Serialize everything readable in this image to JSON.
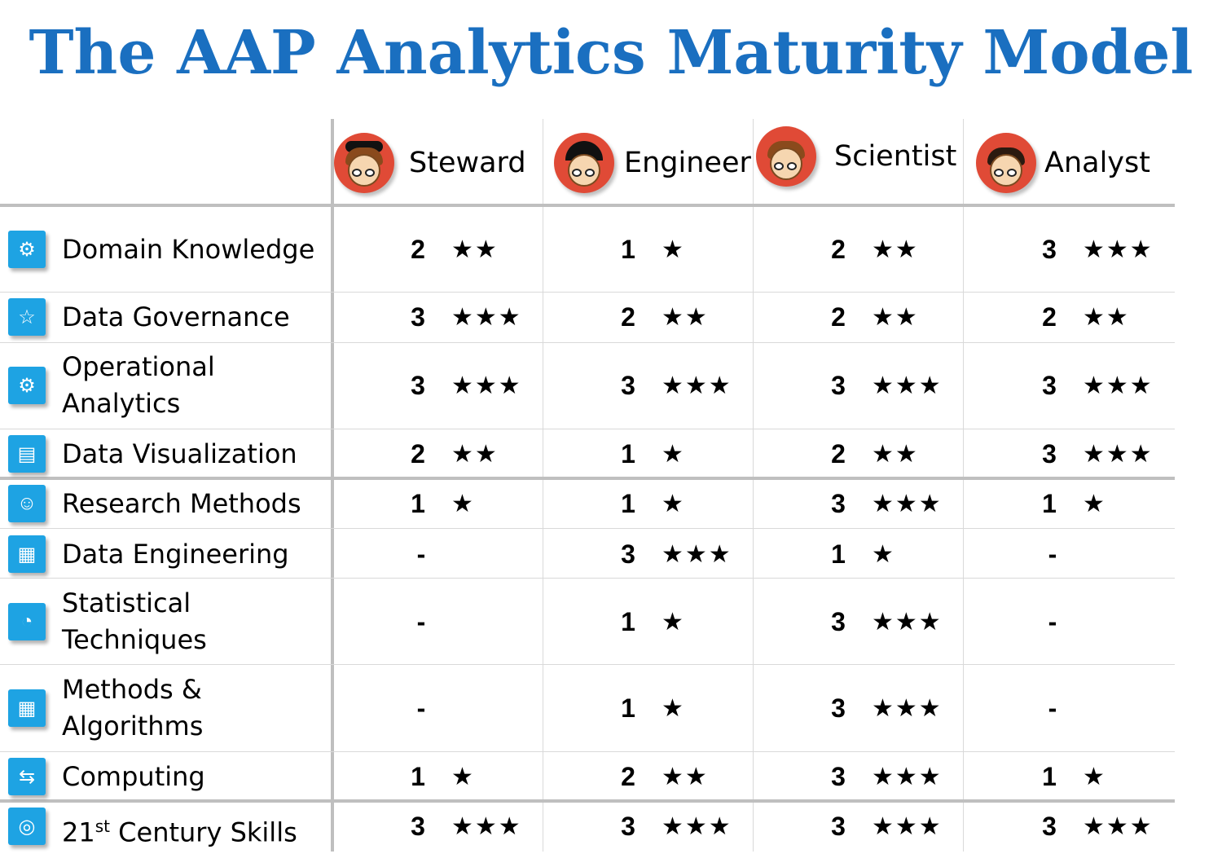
{
  "title": "The AAP Analytics Maturity Model",
  "colors": {
    "title": "#1a6fc0",
    "avatar_bg": "#e04a36",
    "icon_bg": "#1ea3e3",
    "grid": "#bfbfbf"
  },
  "roles": [
    {
      "label": "Steward",
      "icon": "steward-avatar-icon"
    },
    {
      "label": "Engineer",
      "icon": "engineer-avatar-icon"
    },
    {
      "label": "Scientist",
      "icon": "scientist-avatar-icon"
    },
    {
      "label": "Analyst",
      "icon": "analyst-avatar-icon"
    }
  ],
  "rows": [
    {
      "label": "Domain Knowledge",
      "icon": "domain-knowledge-icon",
      "cells": [
        {
          "score": "2",
          "stars": "★★"
        },
        {
          "score": "1",
          "stars": "★"
        },
        {
          "score": "2",
          "stars": "★★"
        },
        {
          "score": "3",
          "stars": "★★★"
        }
      ]
    },
    {
      "label": "Data Governance",
      "icon": "data-governance-icon",
      "cells": [
        {
          "score": "3",
          "stars": "★★★"
        },
        {
          "score": "2",
          "stars": "★★"
        },
        {
          "score": "2",
          "stars": "★★"
        },
        {
          "score": "2",
          "stars": "★★"
        }
      ]
    },
    {
      "label": "Operational\nAnalytics",
      "icon": "operational-analytics-icon",
      "cells": [
        {
          "score": "3",
          "stars": "★★★"
        },
        {
          "score": "3",
          "stars": "★★★"
        },
        {
          "score": "3",
          "stars": "★★★"
        },
        {
          "score": "3",
          "stars": "★★★"
        }
      ]
    },
    {
      "label": "Data Visualization",
      "icon": "data-visualization-icon",
      "cells": [
        {
          "score": "2",
          "stars": "★★"
        },
        {
          "score": "1",
          "stars": "★"
        },
        {
          "score": "2",
          "stars": "★★"
        },
        {
          "score": "3",
          "stars": "★★★"
        }
      ]
    },
    {
      "label": "Research Methods",
      "icon": "research-methods-icon",
      "cells": [
        {
          "score": "1",
          "stars": "★"
        },
        {
          "score": "1",
          "stars": "★"
        },
        {
          "score": "3",
          "stars": "★★★"
        },
        {
          "score": "1",
          "stars": "★"
        }
      ]
    },
    {
      "label": "Data Engineering",
      "icon": "data-engineering-icon",
      "cells": [
        {
          "score": "-",
          "stars": ""
        },
        {
          "score": "3",
          "stars": "★★★"
        },
        {
          "score": "1",
          "stars": "★"
        },
        {
          "score": "-",
          "stars": ""
        }
      ]
    },
    {
      "label": "Statistical\nTechniques",
      "icon": "statistical-techniques-icon",
      "cells": [
        {
          "score": "-",
          "stars": ""
        },
        {
          "score": "1",
          "stars": "★"
        },
        {
          "score": "3",
          "stars": "★★★"
        },
        {
          "score": "-",
          "stars": ""
        }
      ]
    },
    {
      "label": "Methods &\nAlgorithms",
      "icon": "methods-algorithms-icon",
      "cells": [
        {
          "score": "-",
          "stars": ""
        },
        {
          "score": "1",
          "stars": "★"
        },
        {
          "score": "3",
          "stars": "★★★"
        },
        {
          "score": "-",
          "stars": ""
        }
      ]
    },
    {
      "label": "Computing",
      "icon": "computing-icon",
      "cells": [
        {
          "score": "1",
          "stars": "★"
        },
        {
          "score": "2",
          "stars": "★★"
        },
        {
          "score": "3",
          "stars": "★★★"
        },
        {
          "score": "1",
          "stars": "★"
        }
      ]
    },
    {
      "label_main": "21",
      "label_sup": "st",
      "label_rest": " Century Skills",
      "icon": "21st-century-skills-icon",
      "cells": [
        {
          "score": "3",
          "stars": "★★★"
        },
        {
          "score": "3",
          "stars": "★★★"
        },
        {
          "score": "3",
          "stars": "★★★"
        },
        {
          "score": "3",
          "stars": "★★★"
        }
      ]
    }
  ]
}
